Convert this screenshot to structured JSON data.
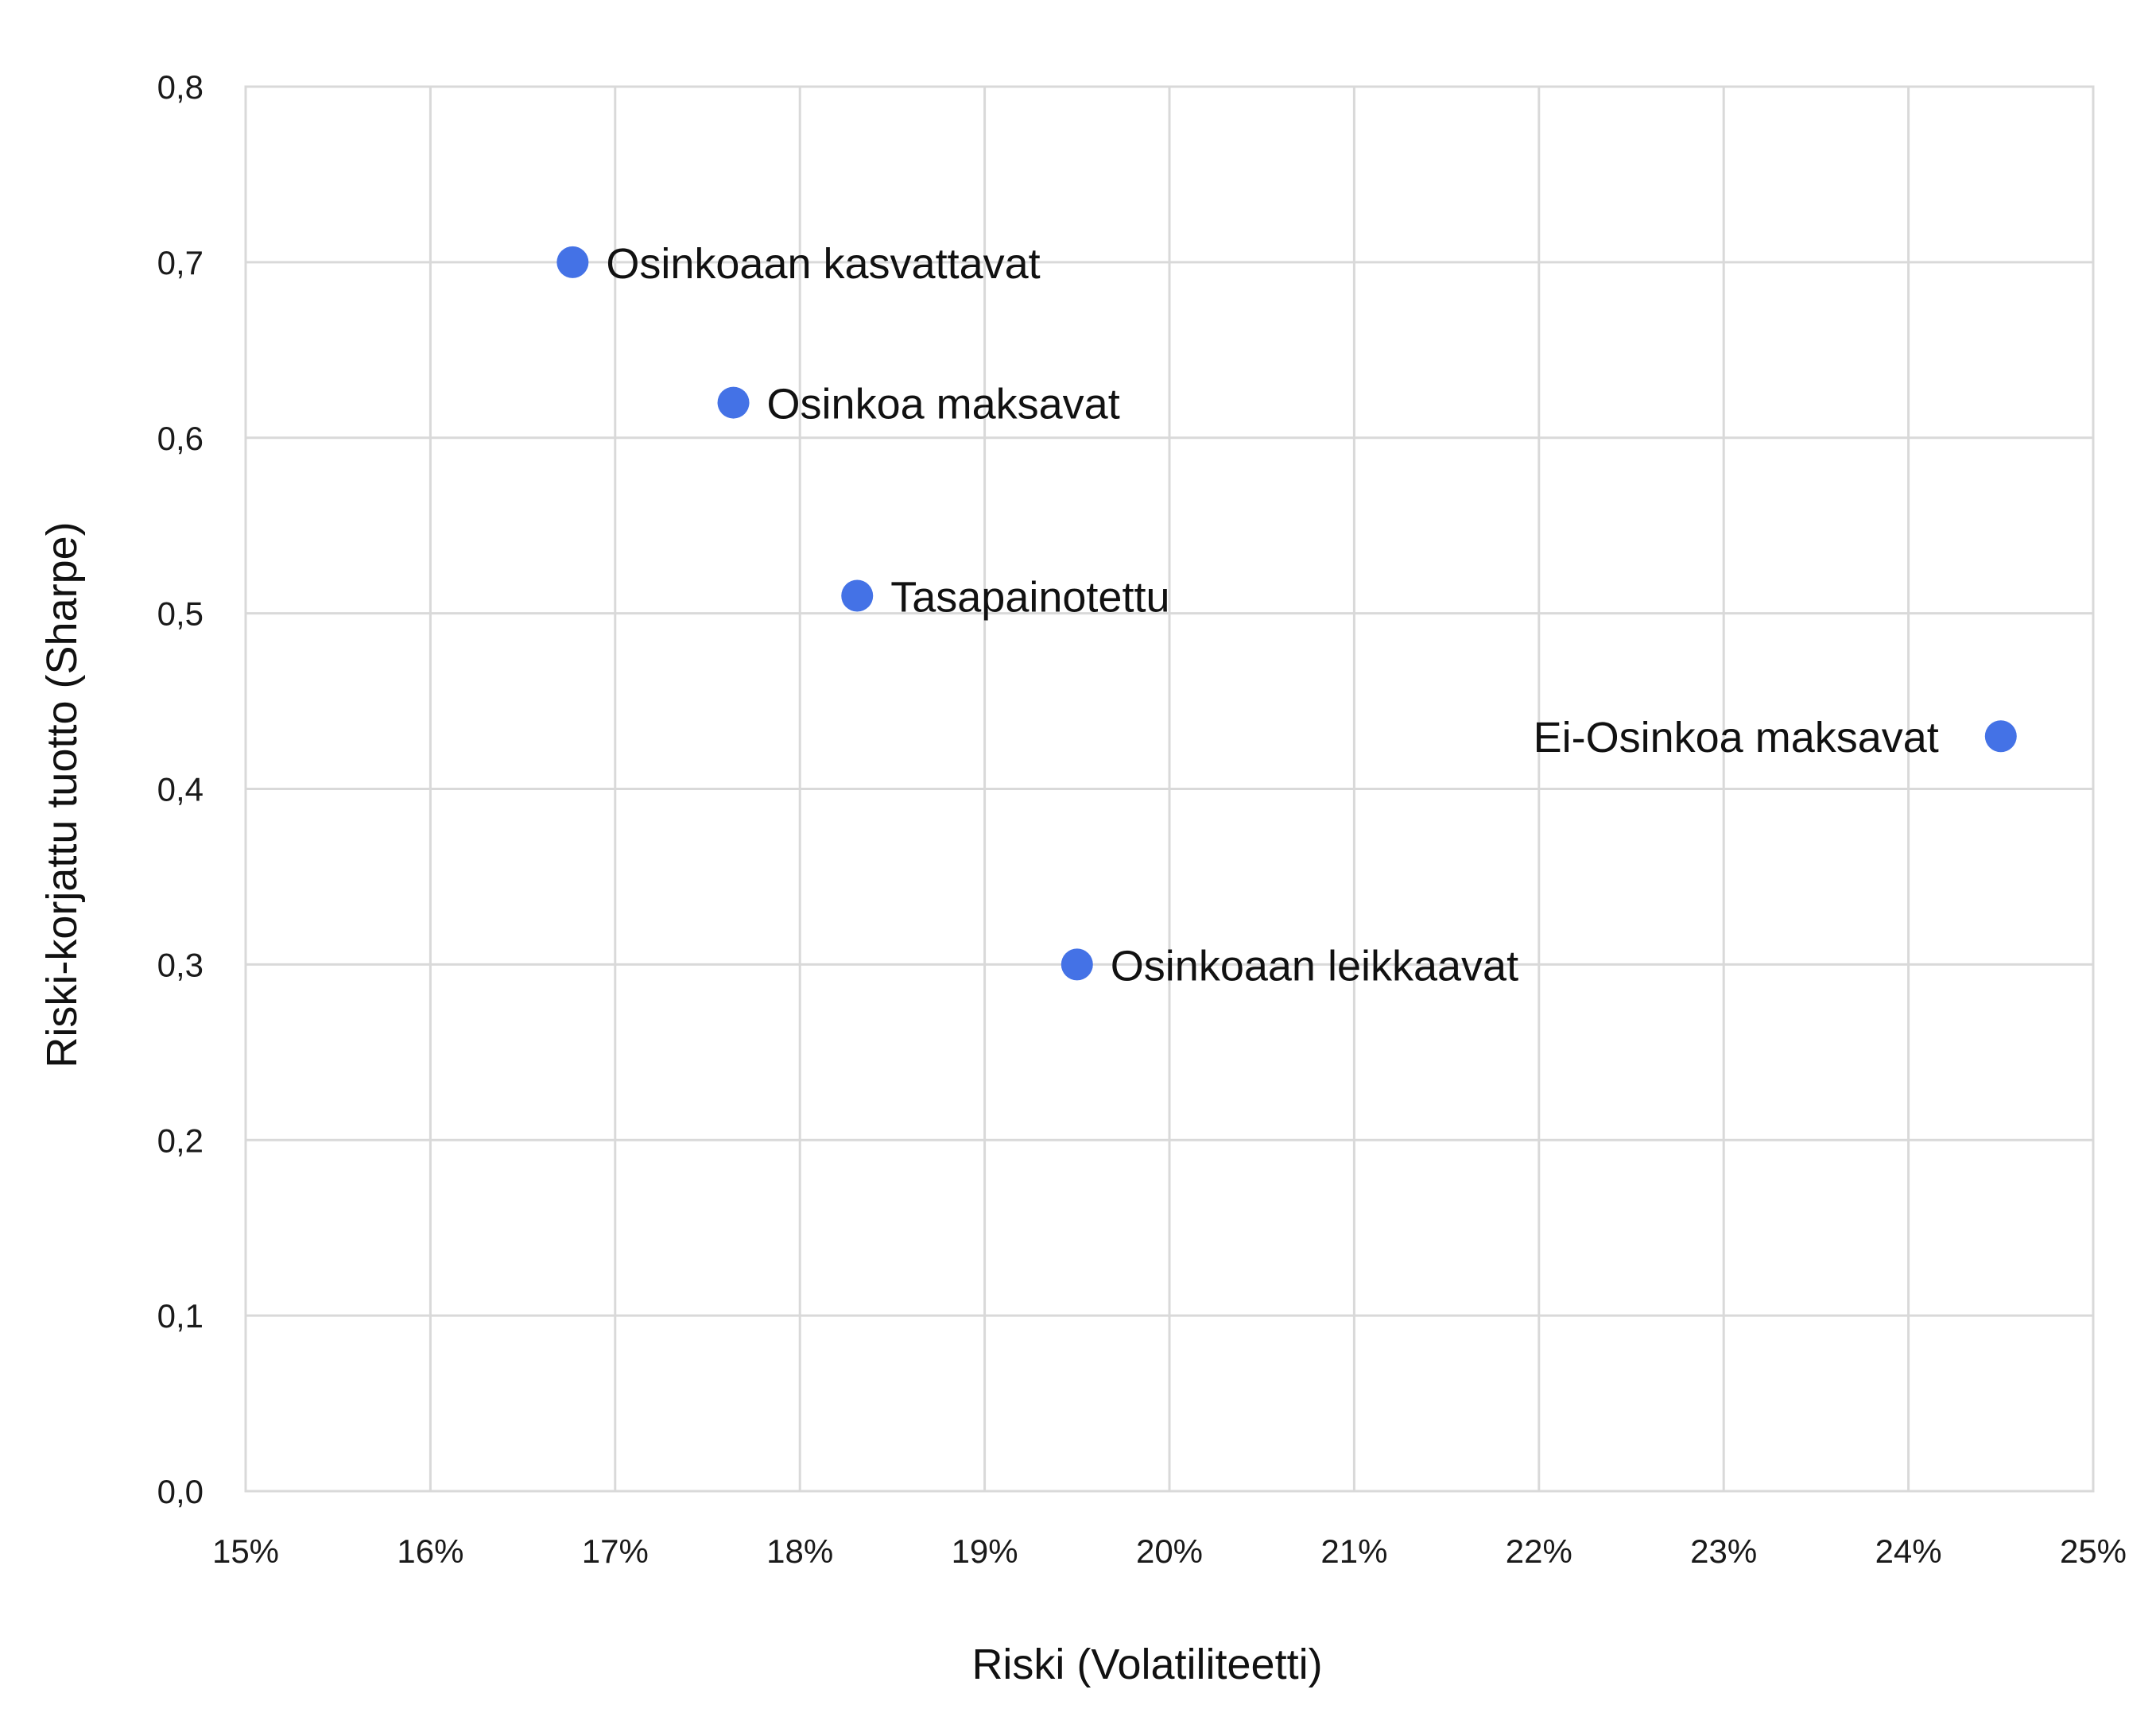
{
  "chart_data": {
    "type": "scatter",
    "title": "",
    "xlabel": "Riski (Volatiliteetti)",
    "ylabel": "Riski-korjattu tuotto (Sharpe)",
    "xlim": [
      15,
      25
    ],
    "ylim": [
      0,
      0.8
    ],
    "x_ticks": [
      "15%",
      "16%",
      "17%",
      "18%",
      "19%",
      "20%",
      "21%",
      "22%",
      "23%",
      "24%",
      "25%"
    ],
    "y_ticks": [
      "0,0",
      "0,1",
      "0,2",
      "0,3",
      "0,4",
      "0,5",
      "0,6",
      "0,7",
      "0,8"
    ],
    "grid": true,
    "color": "#4472e6",
    "points": [
      {
        "label": "Osinkoaan kasvattavat",
        "x": 16.77,
        "y": 0.7
      },
      {
        "label": "Osinkoa maksavat",
        "x": 17.64,
        "y": 0.62
      },
      {
        "label": "Tasapainotettu",
        "x": 18.31,
        "y": 0.51
      },
      {
        "label": "Ei-Osinkoa maksavat",
        "x": 24.5,
        "y": 0.43
      },
      {
        "label": "Osinkoaan leikkaavat",
        "x": 19.5,
        "y": 0.3
      }
    ]
  }
}
